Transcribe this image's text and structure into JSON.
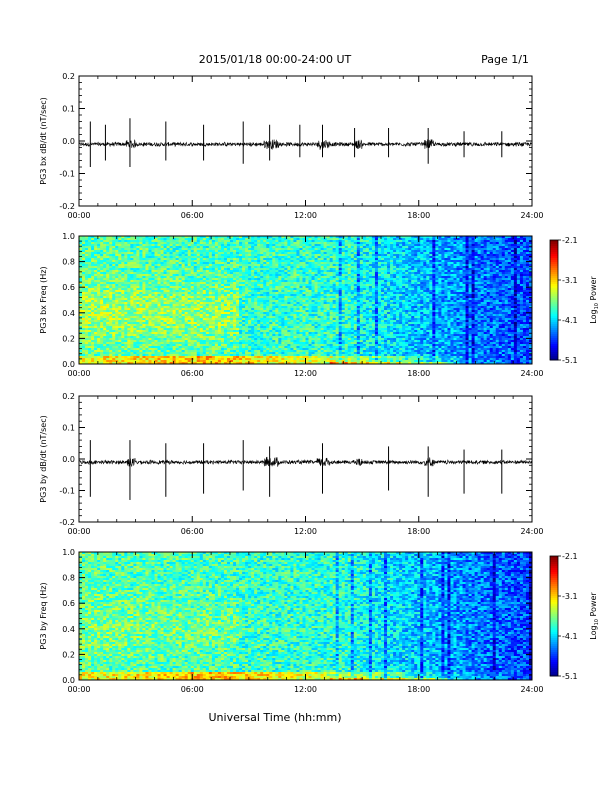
{
  "header": {
    "title": "2015/01/18  00:00-24:00 UT",
    "page": "Page 1/1"
  },
  "xaxis": {
    "label": "Universal Time (hh:mm)",
    "ticks": [
      "00:00",
      "06:00",
      "12:00",
      "18:00",
      "24:00"
    ]
  },
  "colorbar": {
    "label": "Log",
    "label_sub": "10",
    "label_rest": " Power",
    "ticks": [
      "-2.1",
      "-3.1",
      "-4.1",
      "-5.1"
    ],
    "range": [
      -5.1,
      -2.1
    ]
  },
  "chart_data": [
    {
      "type": "line",
      "ylabel": "PG3 bx dB/dt (nT/sec)",
      "xlim": [
        0,
        24
      ],
      "ylim": [
        -0.2,
        0.2
      ],
      "yticks": [
        "0.2",
        "0.1",
        "0.0",
        "-0.1",
        "-0.2"
      ],
      "baseline": -0.01,
      "pulses": [
        {
          "x": 0.6,
          "up": 0.06,
          "down": -0.08
        },
        {
          "x": 1.4,
          "up": 0.05,
          "down": -0.06
        },
        {
          "x": 2.7,
          "up": 0.07,
          "down": -0.08
        },
        {
          "x": 4.6,
          "up": 0.06,
          "down": -0.06
        },
        {
          "x": 6.6,
          "up": 0.05,
          "down": -0.06
        },
        {
          "x": 8.7,
          "up": 0.06,
          "down": -0.07
        },
        {
          "x": 10.1,
          "up": 0.05,
          "down": -0.06
        },
        {
          "x": 11.7,
          "up": 0.05,
          "down": -0.05
        },
        {
          "x": 12.9,
          "up": 0.05,
          "down": -0.05
        },
        {
          "x": 14.6,
          "up": 0.04,
          "down": -0.05
        },
        {
          "x": 16.4,
          "up": 0.04,
          "down": -0.05
        },
        {
          "x": 18.5,
          "up": 0.04,
          "down": -0.07
        },
        {
          "x": 20.4,
          "up": 0.03,
          "down": -0.05
        },
        {
          "x": 22.4,
          "up": 0.03,
          "down": -0.05
        }
      ]
    },
    {
      "type": "heatmap",
      "ylabel": "PG3 bx Freq (Hz)",
      "xlim": [
        0,
        24
      ],
      "ylim": [
        0.0,
        1.0
      ],
      "yticks": [
        "1.0",
        "0.8",
        "0.6",
        "0.4",
        "0.2",
        "0.0"
      ],
      "zlim": [
        -5.1,
        -2.1
      ]
    },
    {
      "type": "line",
      "ylabel": "PG3 by dB/dt (nT/sec)",
      "xlim": [
        0,
        24
      ],
      "ylim": [
        -0.2,
        0.2
      ],
      "yticks": [
        "0.2",
        "0.1",
        "0.0",
        "-0.1",
        "-0.2"
      ],
      "baseline": -0.01,
      "pulses": [
        {
          "x": 0.6,
          "up": 0.06,
          "down": -0.12
        },
        {
          "x": 2.7,
          "up": 0.06,
          "down": -0.13
        },
        {
          "x": 4.6,
          "up": 0.05,
          "down": -0.12
        },
        {
          "x": 6.6,
          "up": 0.05,
          "down": -0.11
        },
        {
          "x": 8.7,
          "up": 0.06,
          "down": -0.1
        },
        {
          "x": 10.1,
          "up": 0.04,
          "down": -0.12
        },
        {
          "x": 12.9,
          "up": 0.05,
          "down": -0.11
        },
        {
          "x": 16.4,
          "up": 0.04,
          "down": -0.1
        },
        {
          "x": 18.5,
          "up": 0.04,
          "down": -0.12
        },
        {
          "x": 20.4,
          "up": 0.03,
          "down": -0.11
        },
        {
          "x": 22.4,
          "up": 0.03,
          "down": -0.11
        }
      ]
    },
    {
      "type": "heatmap",
      "ylabel": "PG3 by Freq (Hz)",
      "xlim": [
        0,
        24
      ],
      "ylim": [
        0.0,
        1.0
      ],
      "yticks": [
        "1.0",
        "0.8",
        "0.6",
        "0.4",
        "0.2",
        "0.0"
      ],
      "zlim": [
        -5.1,
        -2.1
      ]
    }
  ]
}
